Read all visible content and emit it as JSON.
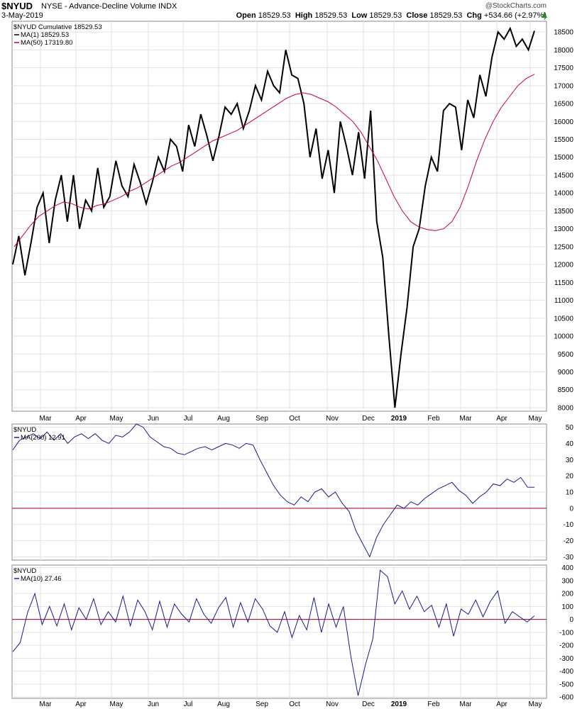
{
  "header": {
    "symbol": "$NYUD",
    "description": "NYSE - Advance-Decline Volume INDX",
    "date": "3-May-2019",
    "watermark": "@StockCharts.com",
    "open_label": "Open",
    "open": "18529.53",
    "high_label": "High",
    "high": "18529.53",
    "low_label": "Low",
    "low": "18529.53",
    "close_label": "Close",
    "close": "18529.53",
    "chg_label": "Chg",
    "chg": "+534.66 (+2.97%)",
    "chg_icon": "up-triangle-icon"
  },
  "x_tick_labels": [
    "Mar",
    "Apr",
    "May",
    "Jun",
    "Jul",
    "Aug",
    "Sep",
    "Oct",
    "Nov",
    "Dec",
    "2019",
    "Feb",
    "Mar",
    "Apr",
    "May"
  ],
  "colors": {
    "price": "#000000",
    "ma50": "#cc0033",
    "osc": "#1a1a8c",
    "zero": "#a0001c",
    "grid": "#e2e2e2"
  },
  "chart_data": [
    {
      "type": "line",
      "title": "$NYUD Cumulative 18529.53",
      "legend": [
        "$NYUD Cumulative 18529.53",
        "MA(1) 18529.53",
        "MA(50) 17319.80"
      ],
      "ylim": [
        7900,
        18800
      ],
      "y_ticks": [
        "8000",
        "8500",
        "9000",
        "9500",
        "10000",
        "10500",
        "11000",
        "11500",
        "12000",
        "12500",
        "13000",
        "13500",
        "14000",
        "14500",
        "15000",
        "15500",
        "16000",
        "16500",
        "17000",
        "17500",
        "18000",
        "18500"
      ],
      "series": [
        {
          "name": "MA(1) 18529.53",
          "color": "#000000",
          "values": [
            12000,
            12800,
            11700,
            12600,
            13600,
            14000,
            12600,
            13800,
            14500,
            13200,
            14500,
            13000,
            13800,
            13500,
            14700,
            13600,
            13900,
            14900,
            14200,
            13900,
            14800,
            14300,
            13700,
            14300,
            15000,
            14600,
            15500,
            15300,
            14600,
            15900,
            15300,
            16200,
            15600,
            14900,
            15600,
            16400,
            16200,
            16500,
            15800,
            16300,
            17000,
            16600,
            17400,
            17000,
            16800,
            18000,
            17300,
            17200,
            16500,
            15000,
            15800,
            14400,
            15200,
            14000,
            16000,
            15300,
            14500,
            15700,
            14400,
            16300,
            13200,
            12200,
            10000,
            8000,
            9500,
            10800,
            12500,
            13000,
            14200,
            15000,
            14600,
            16300,
            16500,
            16400,
            15200,
            16600,
            16100,
            17300,
            16700,
            17800,
            18500,
            18300,
            18600,
            18100,
            18300,
            18000,
            18529.53
          ]
        },
        {
          "name": "MA(50) 17319.80",
          "color": "#cc0033",
          "values": [
            12500,
            12800,
            13100,
            13350,
            13500,
            13650,
            13750,
            13700,
            13600,
            13550,
            13650,
            13700,
            13800,
            13900,
            14050,
            14150,
            14300,
            14450,
            14600,
            14750,
            14850,
            15000,
            15150,
            15300,
            15450,
            15550,
            15650,
            15750,
            15900,
            16050,
            16200,
            16350,
            16500,
            16650,
            16750,
            16800,
            16750,
            16650,
            16550,
            16400,
            16200,
            16000,
            15700,
            15300,
            14900,
            14400,
            13900,
            13500,
            13200,
            13050,
            12980,
            12950,
            13000,
            13200,
            13600,
            14200,
            14900,
            15500,
            16000,
            16400,
            16700,
            17000,
            17200,
            17319.8
          ]
        }
      ]
    },
    {
      "type": "line",
      "title": "$NYUD",
      "legend": [
        "$NYUD",
        "MA(200) 12.91"
      ],
      "ylim": [
        -32,
        52
      ],
      "y_ticks": [
        "-30",
        "-20",
        "-10",
        "0",
        "10",
        "20",
        "30",
        "40",
        "50"
      ],
      "series": [
        {
          "name": "MA(200) 12.91",
          "color": "#1a1a8c",
          "values": [
            36,
            42,
            44,
            46,
            43,
            47,
            42,
            46,
            40,
            44,
            46,
            43,
            46,
            42,
            40,
            45,
            44,
            47,
            52,
            50,
            44,
            41,
            38,
            37,
            34,
            33,
            35,
            37,
            38,
            36,
            38,
            40,
            39,
            37,
            40,
            39,
            30,
            22,
            14,
            8,
            4,
            2,
            7,
            4,
            10,
            12,
            7,
            10,
            3,
            -2,
            -14,
            -22,
            -30,
            -18,
            -10,
            -4,
            2,
            0,
            4,
            2,
            6,
            9,
            12,
            14,
            16,
            11,
            8,
            3,
            7,
            10,
            15,
            14,
            18,
            16,
            19,
            13,
            12.91
          ]
        }
      ]
    },
    {
      "type": "line",
      "title": "$NYUD",
      "legend": [
        "$NYUD",
        "MA(10) 27.46"
      ],
      "ylim": [
        -610,
        420
      ],
      "y_ticks": [
        "-600",
        "-500",
        "-400",
        "-300",
        "-200",
        "-100",
        "0",
        "100",
        "200",
        "300",
        "400"
      ],
      "series": [
        {
          "name": "MA(10) 27.46",
          "color": "#1a1a8c",
          "values": [
            -250,
            -180,
            50,
            200,
            -40,
            100,
            -50,
            120,
            -80,
            90,
            0,
            160,
            -40,
            60,
            -20,
            180,
            -50,
            150,
            60,
            -80,
            140,
            -60,
            120,
            40,
            -20,
            160,
            40,
            -30,
            90,
            170,
            -60,
            130,
            -20,
            160,
            80,
            -50,
            -100,
            60,
            -140,
            30,
            -80,
            170,
            -100,
            120,
            -60,
            100,
            -280,
            -590,
            -350,
            -150,
            380,
            330,
            120,
            220,
            80,
            180,
            60,
            110,
            -60,
            120,
            -130,
            80,
            40,
            150,
            20,
            140,
            220,
            -30,
            60,
            20,
            -20,
            27.46
          ]
        }
      ]
    }
  ]
}
